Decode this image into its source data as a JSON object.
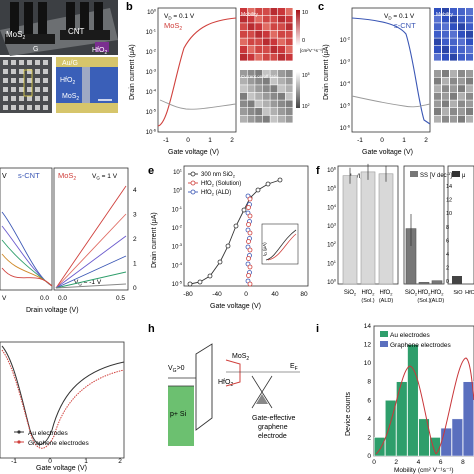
{
  "colors": {
    "mos2": "#d0403c",
    "cnt": "#3b57b5",
    "red_grid": "#c9363a",
    "blue_grid": "#2f4fbf",
    "gray_grid": "#8c8c8c",
    "green_bar": "#2e9e6b",
    "blue_bar": "#5a6fbe",
    "hfo2_green": "#6cc070"
  },
  "panel_labels": {
    "b": "b",
    "c": "c",
    "e": "e",
    "f": "f",
    "h": "h",
    "i": "i"
  },
  "a_top": {
    "mos2": "MoS",
    "mos2_sub": "2",
    "cnt": "CNT",
    "g": "G",
    "hfo2": "HfO",
    "hfo2_sub": "2"
  },
  "a_bottom": {
    "aug": "Au/G",
    "hfo2": "HfO",
    "hfo2_sub": "2",
    "mos2": "MoS",
    "mos2_sub": "2"
  },
  "b": {
    "vd": "V",
    "vd_sub": "D",
    "vd_val": " = 0.1 V",
    "title": "MoS",
    "title_sub": "2",
    "ylabel": "Drain current (μA)",
    "xlabel": "Gate voltage (V)",
    "yticks": [
      "10",
      "10",
      "10",
      "10",
      "10",
      "10",
      "10"
    ],
    "yexp": [
      "0",
      "-1",
      "-2",
      "-3",
      "-4",
      "-5",
      "-6"
    ],
    "xticks": [
      "-1",
      "0",
      "1",
      "2"
    ],
    "mob_label": "Mobility",
    "mob_scale_top": "10",
    "mob_scale_bot": "0",
    "mob_unit": "[cm²V⁻¹s⁻¹]",
    "ratio_label": "Current on/off ratio",
    "ratio_scale_top": "10",
    "ratio_scale_top_exp": "5",
    "ratio_scale_bot": "10",
    "ratio_scale_bot_exp": "2"
  },
  "c": {
    "vd": "V",
    "vd_sub": "D",
    "vd_val": " = 0.1 V",
    "title": "s-CNT",
    "ylabel": "Drain current (μA)",
    "xlabel": "Gate voltage (V)",
    "yexp": [
      "-2",
      "-3",
      "-4",
      "-5",
      "-6"
    ],
    "xticks": [
      "-1",
      "0",
      "1",
      "2"
    ],
    "mob_label": "Mobility"
  },
  "d": {
    "left_v": "V",
    "left_title": "s-CNT",
    "right_title": "MoS",
    "right_sub": "2",
    "vg_top": "V",
    "vg_top_sub": "G",
    "vg_top_val": " = 1 V",
    "vg_bot": "V",
    "vg_bot_sub": "G",
    "vg_bot_val": " = -1 V",
    "xlabel": "Drain voltage (V)",
    "left_xtick": "V",
    "xticks_right": [
      "0.0",
      "0.5"
    ],
    "xtick_mid": "0.0",
    "yticks_right": [
      "0",
      "1",
      "2",
      "3",
      "4"
    ]
  },
  "e": {
    "ylabel": "Drain current (μA)",
    "xlabel": "Gate voltage (V)",
    "legend": [
      "300 nm SiO",
      "HfO",
      "HfO"
    ],
    "legend_subs": [
      "2",
      "2",
      "2"
    ],
    "legend_suffix": [
      "",
      " (Solution)",
      " (ALD)"
    ],
    "yticks": [
      "10",
      "10",
      "10",
      "10",
      "10",
      "10",
      "10"
    ],
    "yexp": [
      "1",
      "0",
      "-1",
      "-2",
      "-3",
      "-4",
      "-5"
    ],
    "xticks": [
      "-80",
      "-40",
      "0",
      "40",
      "80"
    ],
    "inset_ylabel": "I",
    "inset_ysub": "D",
    "inset_yunit": " (μA)"
  },
  "f": {
    "left_title": "I",
    "left_title_sub": "on",
    "left_title_mid": "/I",
    "left_title_sub2": "off",
    "yexp": [
      "6",
      "5",
      "4",
      "3",
      "2",
      "1",
      "0"
    ],
    "ss_label": "SS [V dec",
    "ss_exp": "-1",
    "ss_close": "]",
    "ss_yticks": [
      "14",
      "12",
      "10",
      "8",
      "6",
      "4",
      "2",
      "0"
    ],
    "right_label": "μ",
    "groups": [
      "SiO",
      "HfO",
      "HfO"
    ],
    "group_subs": [
      "2",
      "2",
      "2"
    ],
    "group_notes": [
      "",
      "(Sol.)",
      "(ALD)"
    ],
    "groups_mid": [
      "SiO",
      "HfO",
      "HfO"
    ],
    "groups_right": [
      "SiO",
      "HfO",
      "HfO"
    ]
  },
  "g": {
    "legend": [
      "Au electrodes",
      "Graphene electrodes"
    ],
    "xlabel": "Gate voltage (V)",
    "xticks": [
      "-1",
      "0",
      "1",
      "2"
    ]
  },
  "h": {
    "vg": "V",
    "vg_sub": "G",
    "vg_val": ">0",
    "hfo2": "HfO",
    "hfo2_sub": "2",
    "mos2": "MoS",
    "mos2_sub": "2",
    "ef": "E",
    "ef_sub": "F",
    "psi": "p+ Si",
    "caption": [
      "Gate-effective",
      "graphene",
      "electrode"
    ]
  },
  "i": {
    "legend": [
      "Au electrodes",
      "Graphene electrodes"
    ],
    "ylabel": "Device counts",
    "xlabel": "Mobility (cm² V⁻¹s⁻¹)",
    "yticks": [
      "0",
      "2",
      "4",
      "6",
      "8",
      "10",
      "12",
      "14"
    ],
    "xticks": [
      "0",
      "2",
      "4",
      "6",
      "8"
    ]
  },
  "chart_data": [
    {
      "type": "bar",
      "panel": "i",
      "ylabel": "Device counts",
      "xlabel": "Mobility (cm² V⁻¹s⁻¹)",
      "ylim": [
        0,
        14
      ],
      "xlim": [
        0,
        9
      ],
      "series": [
        {
          "name": "Au electrodes",
          "x": [
            0.5,
            1.5,
            2.5,
            3.5,
            4.5,
            5.5
          ],
          "values": [
            2,
            6,
            8,
            12,
            4,
            2
          ]
        },
        {
          "name": "Graphene electrodes",
          "x": [
            6.5,
            7.5,
            8.5
          ],
          "values": [
            3,
            4,
            8
          ]
        }
      ]
    },
    {
      "type": "bar",
      "panel": "f-left",
      "title": "Ion/Ioff",
      "categories": [
        "SiO2",
        "HfO2 (Sol.)",
        "HfO2 (ALD)"
      ],
      "values": [
        5.7,
        5.9,
        5.8
      ],
      "ylim": [
        0,
        6
      ]
    },
    {
      "type": "bar",
      "panel": "f-middle",
      "title": "SS [V dec-1]",
      "categories": [
        "SiO2",
        "HfO2 (Sol.)",
        "HfO2 (ALD)"
      ],
      "values": [
        6.8,
        0.2,
        0.4
      ],
      "ylim": [
        0,
        14
      ]
    }
  ]
}
